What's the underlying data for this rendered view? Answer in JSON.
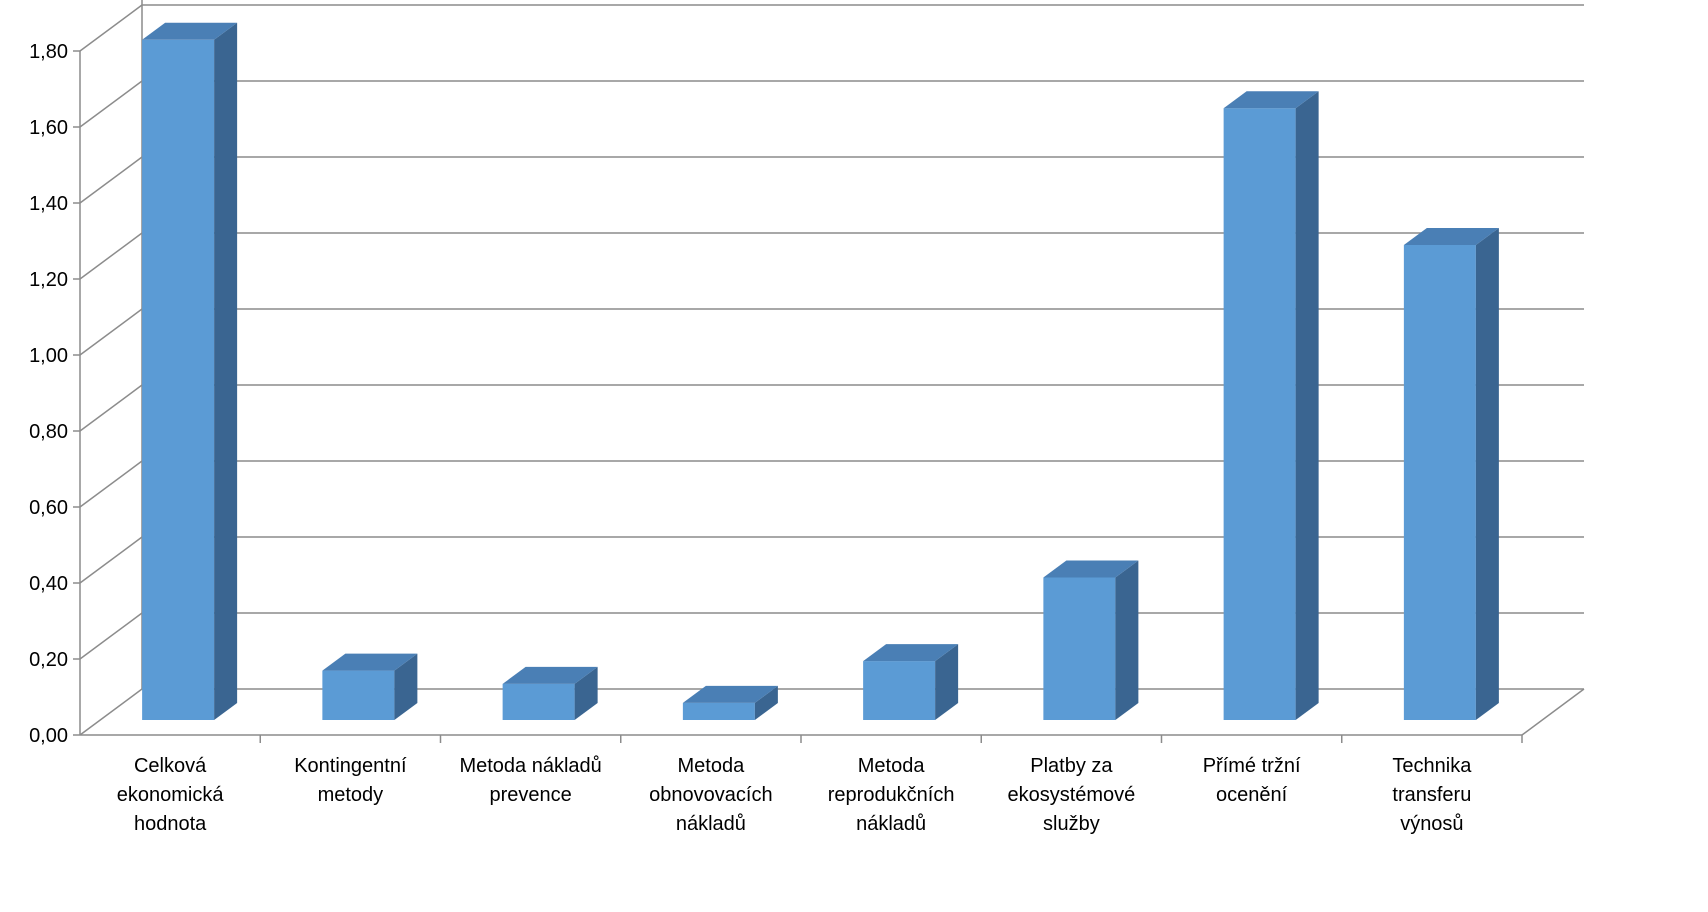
{
  "chart_data": {
    "type": "bar",
    "style": "3d-column",
    "title": "",
    "xlabel": "",
    "ylabel": "",
    "ylim": [
      0,
      1.8
    ],
    "yticks": [
      "0,00",
      "0,20",
      "0,40",
      "0,60",
      "0,80",
      "1,00",
      "1,20",
      "1,40",
      "1,60",
      "1,80"
    ],
    "grid": true,
    "categories": [
      "Celková ekonomická hodnota",
      "Kontingentní metody",
      "Metoda nákladů prevence",
      "Metoda obnovovacích nákladů",
      "Metoda reprodukčních nákladů",
      "Platby za ekosystémové služby",
      "Přímé tržní ocenění",
      "Technika transferu výnosů"
    ],
    "category_lines": [
      [
        "Celková",
        "ekonomická",
        "hodnota"
      ],
      [
        "Kontingentní",
        "metody"
      ],
      [
        "Metoda nákladů",
        "prevence"
      ],
      [
        "Metoda",
        "obnovovacích",
        "nákladů"
      ],
      [
        "Metoda",
        "reprodukčních",
        "nákladů"
      ],
      [
        "Platby za",
        "ekosystémové",
        "služby"
      ],
      [
        "Přímé tržní",
        "ocenění"
      ],
      [
        "Technika",
        "transferu",
        "výnosů"
      ]
    ],
    "values": [
      1.79,
      0.13,
      0.095,
      0.045,
      0.155,
      0.375,
      1.61,
      1.25
    ],
    "colors": {
      "bar_front": "#5b9bd5",
      "bar_side": "#3a6591",
      "bar_top": "#4a7fb5",
      "grid": "#8c8c8c",
      "axis": "#8c8c8c"
    }
  }
}
